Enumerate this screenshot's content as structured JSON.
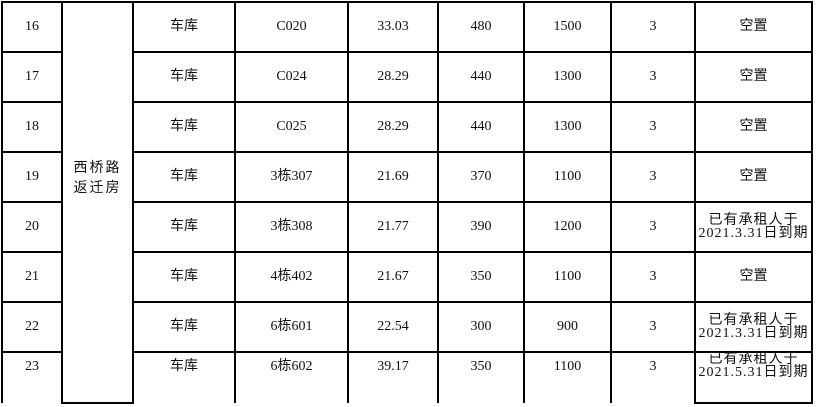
{
  "group_label": "西桥路\n返迁房",
  "rows": [
    {
      "no": "16",
      "type": "车库",
      "code": "C020",
      "area": "33.03",
      "price_a": "480",
      "price_b": "1500",
      "years": "3",
      "status": "空置"
    },
    {
      "no": "17",
      "type": "车库",
      "code": "C024",
      "area": "28.29",
      "price_a": "440",
      "price_b": "1300",
      "years": "3",
      "status": "空置"
    },
    {
      "no": "18",
      "type": "车库",
      "code": "C025",
      "area": "28.29",
      "price_a": "440",
      "price_b": "1300",
      "years": "3",
      "status": "空置"
    },
    {
      "no": "19",
      "type": "车库",
      "code": "3栋307",
      "area": "21.69",
      "price_a": "370",
      "price_b": "1100",
      "years": "3",
      "status": "空置"
    },
    {
      "no": "20",
      "type": "车库",
      "code": "3栋308",
      "area": "21.77",
      "price_a": "390",
      "price_b": "1200",
      "years": "3",
      "status": "已有承租人于2021.3.31日到期"
    },
    {
      "no": "21",
      "type": "车库",
      "code": "4栋402",
      "area": "21.67",
      "price_a": "350",
      "price_b": "1100",
      "years": "3",
      "status": "空置"
    },
    {
      "no": "22",
      "type": "车库",
      "code": "6栋601",
      "area": "22.54",
      "price_a": "300",
      "price_b": "900",
      "years": "3",
      "status": "已有承租人于2021.3.31日到期"
    },
    {
      "no": "23",
      "type": "车库",
      "code": "6栋602",
      "area": "39.17",
      "price_a": "350",
      "price_b": "1100",
      "years": "3",
      "status": "已有承租人于2021.5.31日到期"
    }
  ]
}
